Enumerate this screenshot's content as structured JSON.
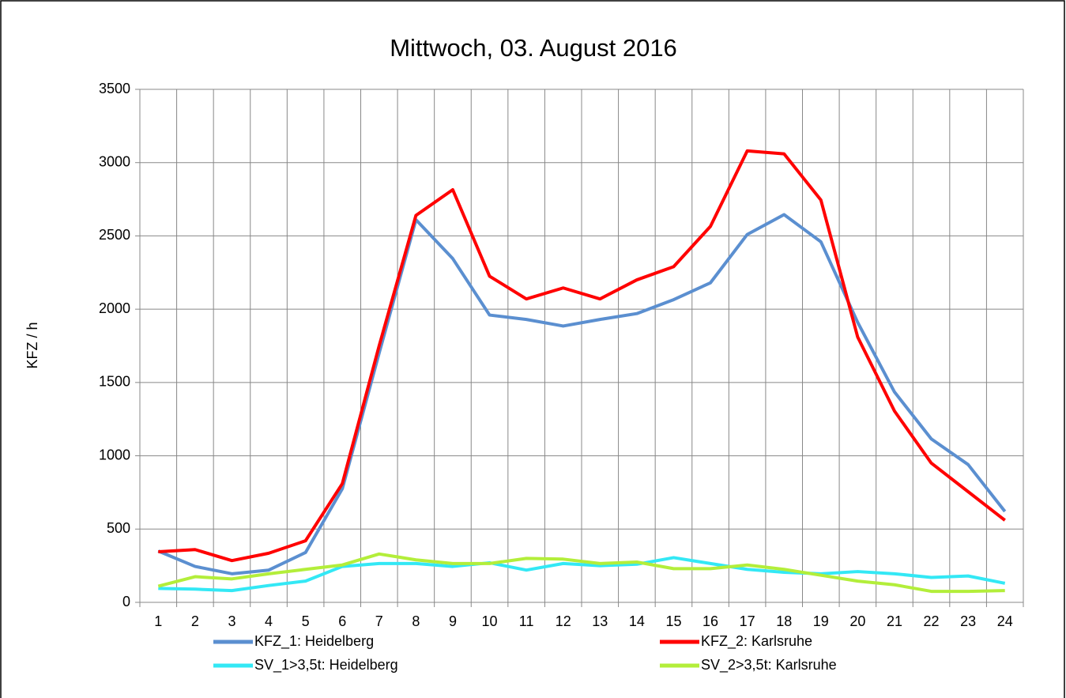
{
  "chart_data": {
    "type": "line",
    "title": "Mittwoch, 03. August 2016",
    "y_label": "KFZ / h",
    "categories": [
      "1",
      "2",
      "3",
      "4",
      "5",
      "6",
      "7",
      "8",
      "9",
      "10",
      "11",
      "12",
      "13",
      "14",
      "15",
      "16",
      "17",
      "18",
      "19",
      "20",
      "21",
      "22",
      "23",
      "24"
    ],
    "series": [
      {
        "name": "KFZ_1: Heidelberg",
        "color": "#5b8fd0",
        "values": [
          350,
          245,
          195,
          220,
          340,
          775,
          1700,
          2610,
          2345,
          1960,
          1930,
          1885,
          1930,
          1970,
          2065,
          2180,
          2510,
          2645,
          2460,
          1910,
          1435,
          1115,
          940,
          620
        ]
      },
      {
        "name": "KFZ_2: Karlsruhe",
        "color": "#ff0000",
        "values": [
          345,
          360,
          285,
          335,
          420,
          810,
          1750,
          2640,
          2815,
          2225,
          2070,
          2145,
          2070,
          2200,
          2290,
          2565,
          3080,
          3060,
          2745,
          1810,
          1305,
          950,
          755,
          560
        ]
      },
      {
        "name": "SV_1>3,5t: Heidelberg",
        "color": "#33e8f5",
        "values": [
          95,
          90,
          80,
          115,
          145,
          245,
          265,
          265,
          245,
          270,
          220,
          265,
          250,
          260,
          305,
          265,
          225,
          205,
          195,
          210,
          195,
          170,
          180,
          130
        ]
      },
      {
        "name": "SV_2>3,5t: Karlsruhe",
        "color": "#b3ee3a",
        "values": [
          110,
          175,
          160,
          195,
          225,
          255,
          330,
          290,
          265,
          265,
          300,
          295,
          265,
          275,
          230,
          230,
          255,
          225,
          185,
          145,
          120,
          75,
          75,
          80
        ]
      }
    ],
    "ylim": [
      0,
      3500
    ],
    "yticks": [
      0,
      500,
      1000,
      1500,
      2000,
      2500,
      3000,
      3500
    ],
    "grid": true
  }
}
